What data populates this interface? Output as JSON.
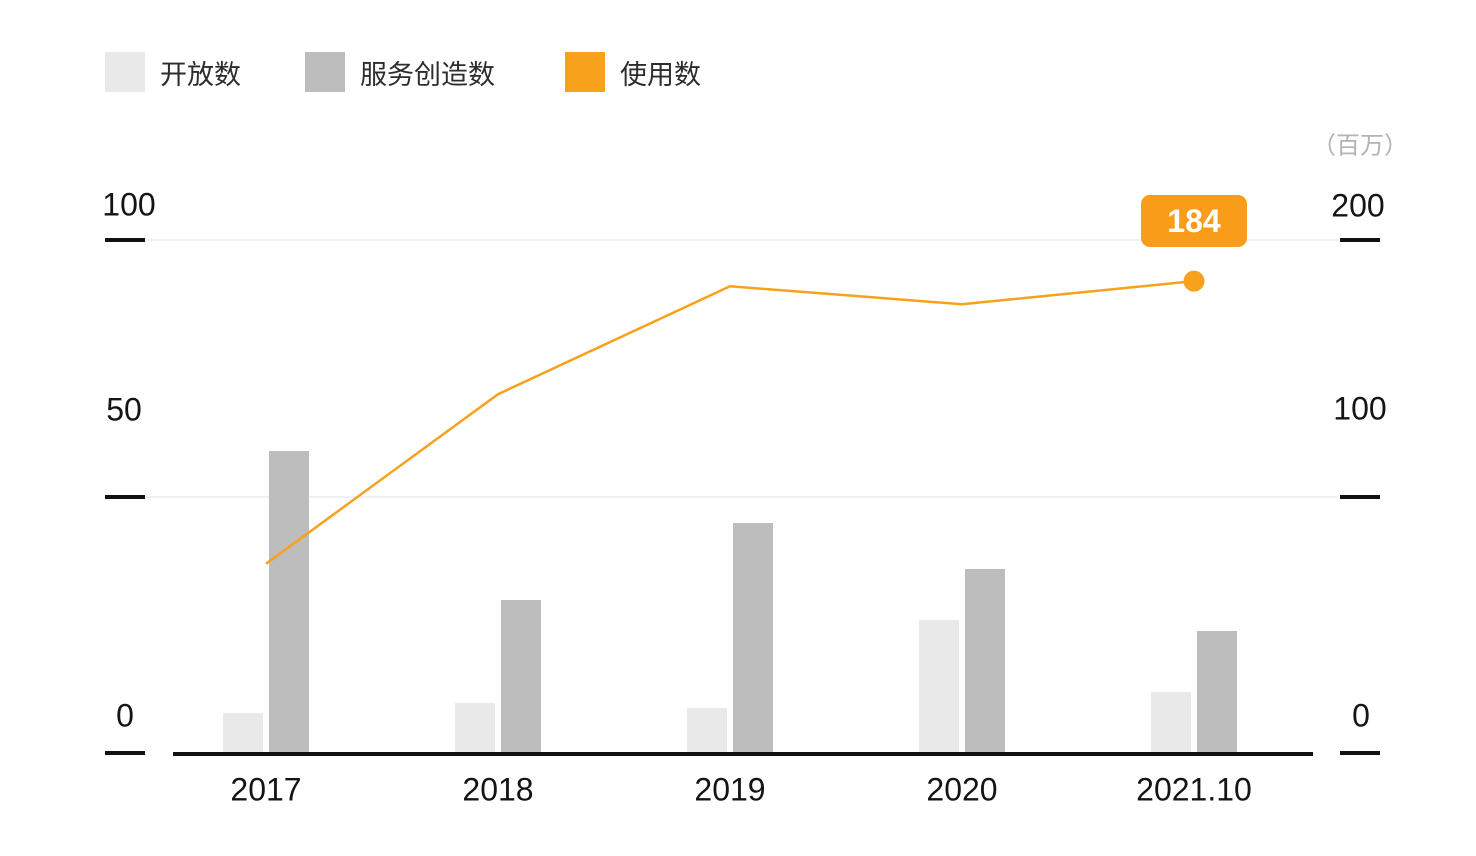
{
  "legend": {
    "items": [
      {
        "label": "开放数",
        "color": "#e9e9e9"
      },
      {
        "label": "服务创造数",
        "color": "#bdbdbd"
      },
      {
        "label": "使用数",
        "color": "#f7a11c"
      }
    ]
  },
  "chart_data": {
    "type": "bar",
    "title": "",
    "categories": [
      "2017",
      "2018",
      "2019",
      "2020",
      "2021.10"
    ],
    "series": [
      {
        "name": "开放数",
        "type": "bar",
        "axis": "left",
        "color": "#e9e9e9",
        "values": [
          8,
          10,
          9,
          26,
          12
        ]
      },
      {
        "name": "服务创造数",
        "type": "bar",
        "axis": "left",
        "color": "#bdbdbd",
        "values": [
          59,
          30,
          45,
          36,
          24
        ]
      },
      {
        "name": "使用数",
        "type": "line",
        "axis": "right",
        "color": "#f7a11c",
        "values": [
          74,
          140,
          182,
          175,
          184
        ]
      }
    ],
    "left_axis": {
      "tick_labels": [
        "100",
        "50",
        "0"
      ],
      "tick_values": [
        100,
        50,
        0
      ],
      "range": [
        0,
        100
      ]
    },
    "right_axis": {
      "tick_labels": [
        "200",
        "100",
        "0"
      ],
      "tick_values": [
        200,
        100,
        0
      ],
      "range": [
        0,
        200
      ],
      "unit": "（百万）"
    },
    "annotation": {
      "text": "184",
      "series": "使用数",
      "category": "2021.10",
      "bg_color": "#f89c1a"
    },
    "grid": "horizontal-only",
    "legend_position": "top-left",
    "colors": {
      "axis": "#111111",
      "gridline": "#f1f1f1",
      "unit_text": "#b3b3b3",
      "badge_text": "#ffffff"
    }
  }
}
